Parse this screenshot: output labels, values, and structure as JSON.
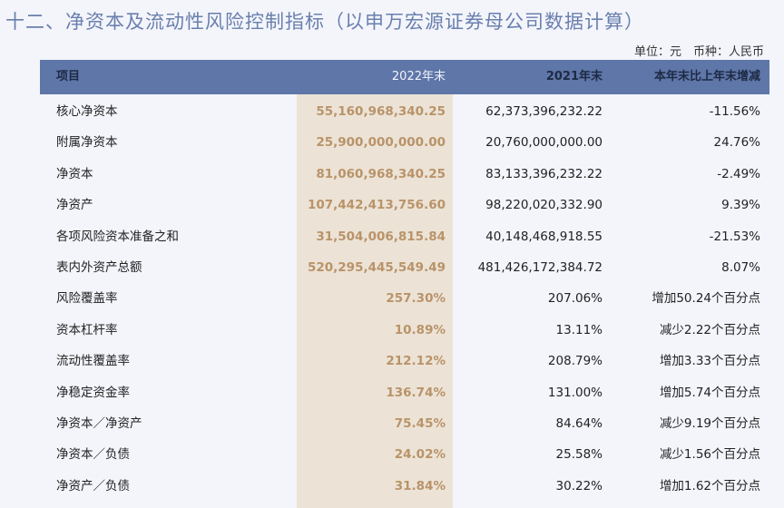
{
  "title": "十二、净资本及流动性风险控制指标（以申万宏源证券母公司数据计算）",
  "unit_note": "单位：元　币种：人民币",
  "columns": {
    "item": "项目",
    "y2022": "2022年末",
    "y2021": "2021年末",
    "change": "本年末比上年末增减"
  },
  "colors": {
    "header_bg": "#5e76a8",
    "highlight_col_bg": "#ece3d6",
    "highlight_text": "#b99369",
    "title": "#6a7fae",
    "page_bg": "#f3f5fb"
  },
  "rows": [
    {
      "item": "核心净资本",
      "y2022": "55,160,968,340.25",
      "y2021": "62,373,396,232.22",
      "change": "-11.56%"
    },
    {
      "item": "附属净资本",
      "y2022": "25,900,000,000.00",
      "y2021": "20,760,000,000.00",
      "change": "24.76%"
    },
    {
      "item": "净资本",
      "y2022": "81,060,968,340.25",
      "y2021": "83,133,396,232.22",
      "change": "-2.49%"
    },
    {
      "item": "净资产",
      "y2022": "107,442,413,756.60",
      "y2021": "98,220,020,332.90",
      "change": "9.39%"
    },
    {
      "item": "各项风险资本准备之和",
      "y2022": "31,504,006,815.84",
      "y2021": "40,148,468,918.55",
      "change": "-21.53%"
    },
    {
      "item": "表内外资产总额",
      "y2022": "520,295,445,549.49",
      "y2021": "481,426,172,384.72",
      "change": "8.07%"
    },
    {
      "item": "风险覆盖率",
      "y2022": "257.30%",
      "y2021": "207.06%",
      "change": "增加50.24个百分点"
    },
    {
      "item": "资本杠杆率",
      "y2022": "10.89%",
      "y2021": "13.11%",
      "change": "减少2.22个百分点"
    },
    {
      "item": "流动性覆盖率",
      "y2022": "212.12%",
      "y2021": "208.79%",
      "change": "增加3.33个百分点"
    },
    {
      "item": "净稳定资金率",
      "y2022": "136.74%",
      "y2021": "131.00%",
      "change": "增加5.74个百分点"
    },
    {
      "item": "净资本／净资产",
      "y2022": "75.45%",
      "y2021": "84.64%",
      "change": "减少9.19个百分点"
    },
    {
      "item": "净资本／负债",
      "y2022": "24.02%",
      "y2021": "25.58%",
      "change": "减少1.56个百分点"
    },
    {
      "item": "净资产／负债",
      "y2022": "31.84%",
      "y2021": "30.22%",
      "change": "增加1.62个百分点"
    }
  ]
}
